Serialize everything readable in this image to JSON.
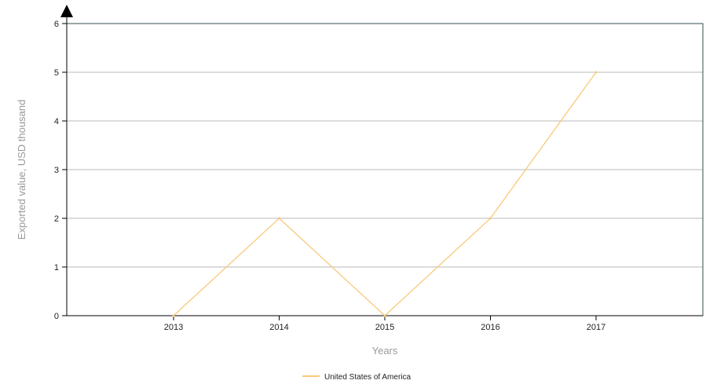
{
  "chart_data": {
    "type": "line",
    "title": "",
    "xlabel": "Years",
    "ylabel": "Exported value, USD thousand",
    "categories": [
      "2013",
      "2014",
      "2015",
      "2016",
      "2017"
    ],
    "series": [
      {
        "name": "United States of America",
        "values": [
          0,
          2,
          0,
          2,
          5
        ],
        "color": "#f9c97b"
      }
    ],
    "ylim": [
      0,
      6
    ],
    "y_ticks": [
      0,
      1,
      2,
      3,
      4,
      5,
      6
    ],
    "grid": "horizontal",
    "legend_position": "bottom-center",
    "colors": {
      "axis": "#000000",
      "plot_border": "#2f4f4f",
      "grid": "#b8b8b8"
    }
  }
}
